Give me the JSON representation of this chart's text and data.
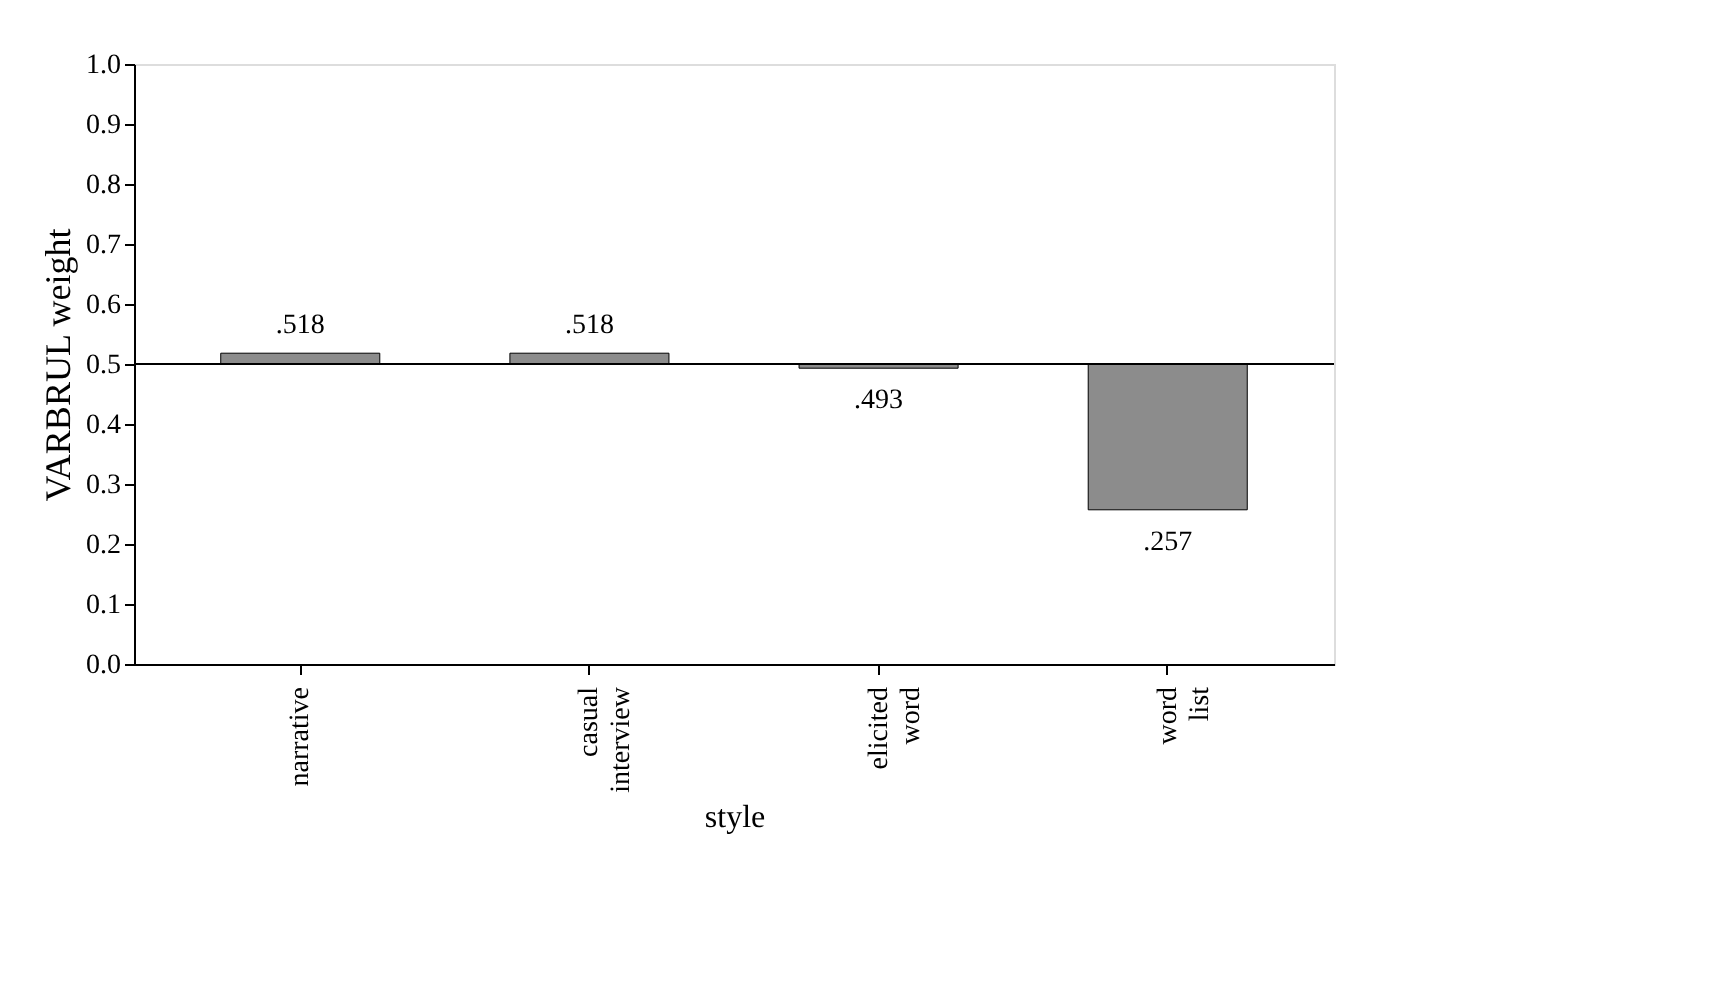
{
  "chart_data": {
    "type": "bar",
    "categories": [
      "narrative",
      "casual interview",
      "elicited word",
      "word list"
    ],
    "base": [
      0.5,
      0.5,
      0.5,
      0.5
    ],
    "values": [
      0.018,
      0.018,
      -0.007,
      -0.243
    ],
    "value_labels": [
      ".518",
      ".518",
      ".493",
      ".257"
    ],
    "color": "#8c8c8c",
    "xlabel": "style",
    "ylabel": "VARBRUL weight",
    "ylim": [
      0,
      1
    ],
    "yticks": [
      {
        "value": 0,
        "label": "0.0"
      },
      {
        "value": 0.1,
        "label": "0.1"
      },
      {
        "value": 0.2,
        "label": "0.2"
      },
      {
        "value": 0.3,
        "label": "0.3"
      },
      {
        "value": 0.4,
        "label": "0.4"
      },
      {
        "value": 0.5,
        "label": "0.5"
      },
      {
        "value": 0.6,
        "label": "0.6"
      },
      {
        "value": 0.7,
        "label": "0.7"
      },
      {
        "value": 0.8,
        "label": "0.8"
      },
      {
        "value": 0.9,
        "label": "0.9"
      },
      {
        "value": 1,
        "label": "1.0"
      }
    ],
    "ref_lines": [
      {
        "axis": "y",
        "value": 0.5,
        "label": null,
        "color": "#000000"
      }
    ],
    "grid": false
  }
}
